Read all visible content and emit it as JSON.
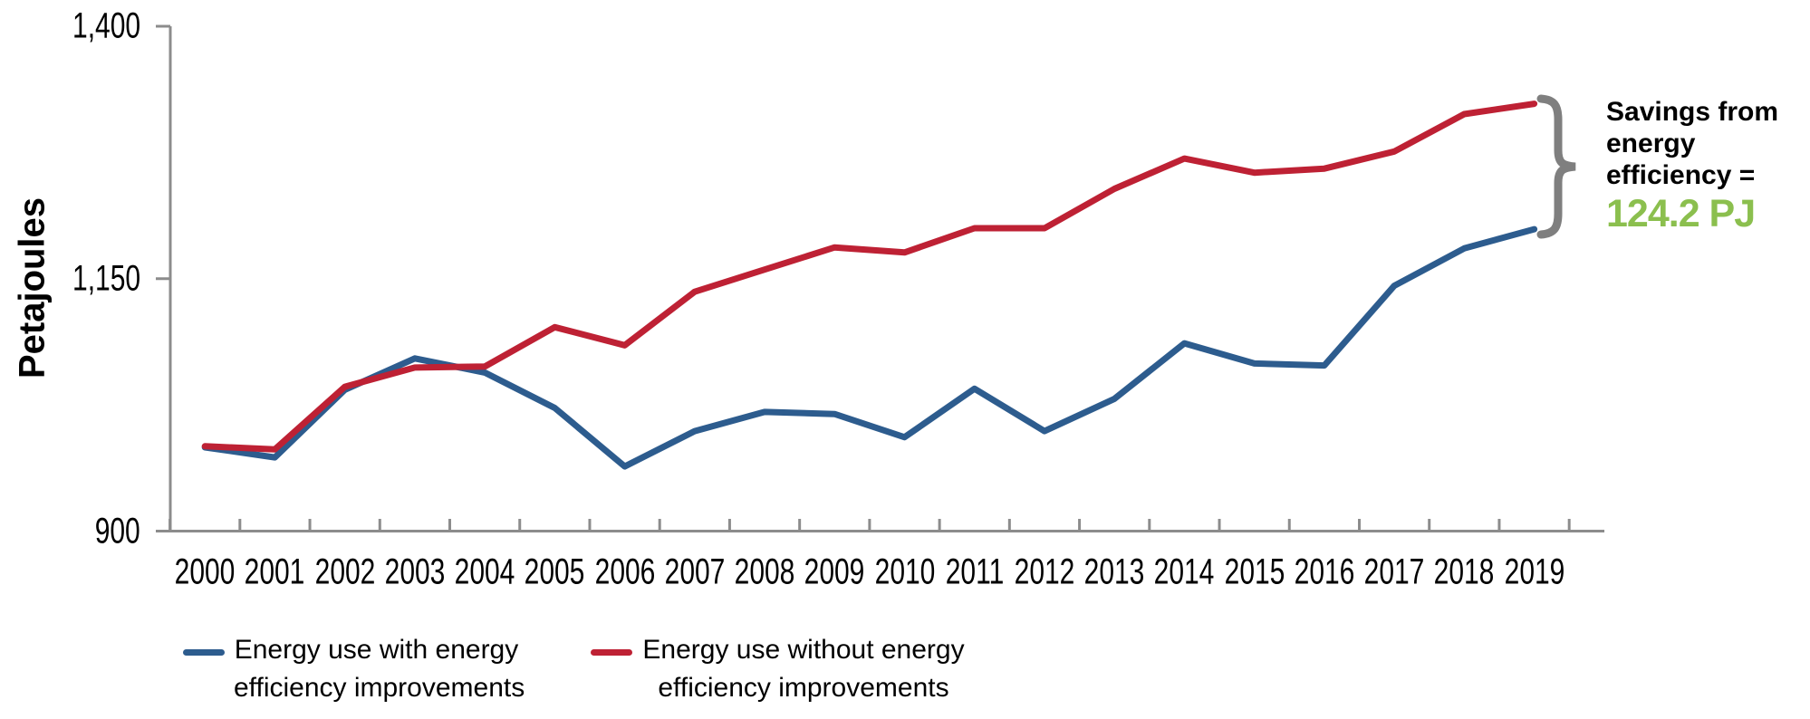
{
  "chart_data": {
    "type": "line",
    "ylabel": "Petajoules",
    "xlabel": "",
    "ylim": [
      900,
      1400
    ],
    "grid": false,
    "legend_position": "bottom",
    "axis_color": "#8c8c8c",
    "yticks": [
      {
        "value": 1400,
        "label": "1,400"
      },
      {
        "value": 1150,
        "label": "1,150"
      },
      {
        "value": 900,
        "label": "900"
      }
    ],
    "categories": [
      "2000",
      "2001",
      "2002",
      "2003",
      "2004",
      "2005",
      "2006",
      "2007",
      "2008",
      "2009",
      "2010",
      "2011",
      "2012",
      "2013",
      "2014",
      "2015",
      "2016",
      "2017",
      "2018",
      "2019"
    ],
    "series": [
      {
        "name": "Energy use with energy efficiency improvements",
        "label_lines": [
          "Energy use with energy",
          "efficiency improvements"
        ],
        "color": "#2d5c8e",
        "values": [
          983,
          973,
          1040,
          1071,
          1057,
          1022,
          964,
          999,
          1018,
          1016,
          993,
          1041,
          999,
          1031,
          1086,
          1066,
          1064,
          1143,
          1180,
          1199
        ]
      },
      {
        "name": "Energy use without energy efficiency improvements",
        "label_lines": [
          "Energy use without energy",
          "efficiency improvements"
        ],
        "color": "#be2134",
        "values": [
          984,
          981,
          1043,
          1062,
          1063,
          1102,
          1084,
          1137,
          1159,
          1181,
          1176,
          1200,
          1200,
          1239,
          1269,
          1255,
          1259,
          1276,
          1313,
          1323.2
        ]
      }
    ]
  },
  "annotation": {
    "lines": [
      "Savings from",
      "energy",
      "efficiency ="
    ],
    "value": "124.2 PJ",
    "value_color": "#8bbf4e",
    "brace_color": "#7f7f7f"
  }
}
